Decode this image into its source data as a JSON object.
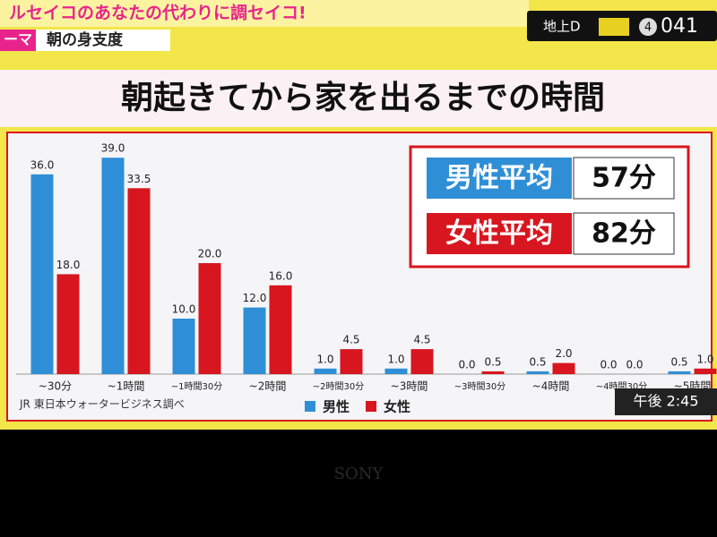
{
  "header": {
    "banner": "ルセイコのあなたの代わりに調セイコ!",
    "theme_tag": "ーマ",
    "theme": "朝の身支度",
    "channel_label": "地上D",
    "channel_button": "4",
    "channel_number": "041"
  },
  "chart_data": {
    "type": "bar",
    "title": "朝起きてから家を出るまでの時間",
    "categories": [
      "~30分",
      "~1時間",
      "~1時間30分",
      "~2時間",
      "~2時間30分",
      "~3時間",
      "~3時間30分",
      "~4時間",
      "~4時間30分",
      "~5時間"
    ],
    "series": [
      {
        "name": "男性",
        "color": "#2f8fd6",
        "values": [
          36.0,
          39.0,
          10.0,
          12.0,
          1.0,
          1.0,
          0.0,
          0.5,
          0.0,
          0.5
        ],
        "value_labels": [
          "36.0",
          "39.0",
          "10.0",
          "12.0",
          "1.0",
          "1.0",
          "0.0",
          "0.5",
          "0.0",
          "0.5"
        ]
      },
      {
        "name": "女性",
        "color": "#d8161f",
        "values": [
          18.0,
          33.5,
          20.0,
          16.0,
          4.5,
          4.5,
          0.5,
          2.0,
          0.0,
          1.0
        ],
        "value_labels": [
          "18.0",
          "33.5",
          "20.0",
          "16.0",
          "4.5",
          "4.5",
          "0.5",
          "2.0",
          "0.0",
          "1.0"
        ]
      }
    ],
    "averages": [
      {
        "label": "男性平均",
        "value": "57分"
      },
      {
        "label": "女性平均",
        "value": "82分"
      }
    ],
    "source": "JR 東日本ウォータービジネス調べ"
  },
  "footer": {
    "clock": "午後 2:45",
    "brand": "SONY"
  }
}
